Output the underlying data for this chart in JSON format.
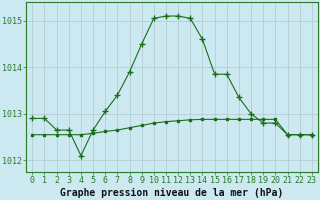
{
  "title": "Graphe pression niveau de la mer (hPa)",
  "bg_color": "#cce8f0",
  "grid_color": "#b0c8d0",
  "line_color": "#1a6e1a",
  "x_ticks": [
    0,
    1,
    2,
    3,
    4,
    5,
    6,
    7,
    8,
    9,
    10,
    11,
    12,
    13,
    14,
    15,
    16,
    17,
    18,
    19,
    20,
    21,
    22,
    23
  ],
  "ylim": [
    1011.75,
    1015.4
  ],
  "yticks": [
    1012,
    1013,
    1014,
    1015
  ],
  "line1_x": [
    0,
    1,
    2,
    3,
    4,
    5,
    6,
    7,
    8,
    9,
    10,
    11,
    12,
    13,
    14,
    15,
    16,
    17,
    18,
    19,
    20,
    21,
    22,
    23
  ],
  "line1_y": [
    1012.9,
    1012.9,
    1012.65,
    1012.65,
    1012.1,
    1012.65,
    1013.05,
    1013.4,
    1013.9,
    1014.5,
    1015.05,
    1015.1,
    1015.1,
    1015.05,
    1014.6,
    1013.85,
    1013.85,
    1013.35,
    1013.0,
    1012.8,
    1012.8,
    1012.55,
    1012.55,
    1012.55
  ],
  "line2_x": [
    0,
    1,
    2,
    3,
    4,
    5,
    6,
    7,
    8,
    9,
    10,
    11,
    12,
    13,
    14,
    15,
    16,
    17,
    18,
    19,
    20,
    21,
    22,
    23
  ],
  "line2_y": [
    1012.55,
    1012.55,
    1012.55,
    1012.55,
    1012.55,
    1012.58,
    1012.62,
    1012.65,
    1012.7,
    1012.75,
    1012.8,
    1012.83,
    1012.85,
    1012.87,
    1012.88,
    1012.88,
    1012.88,
    1012.88,
    1012.88,
    1012.88,
    1012.88,
    1012.55,
    1012.55,
    1012.55
  ],
  "tick_fontsize": 6,
  "label_fontsize": 7,
  "xlabel_fontsize": 7
}
